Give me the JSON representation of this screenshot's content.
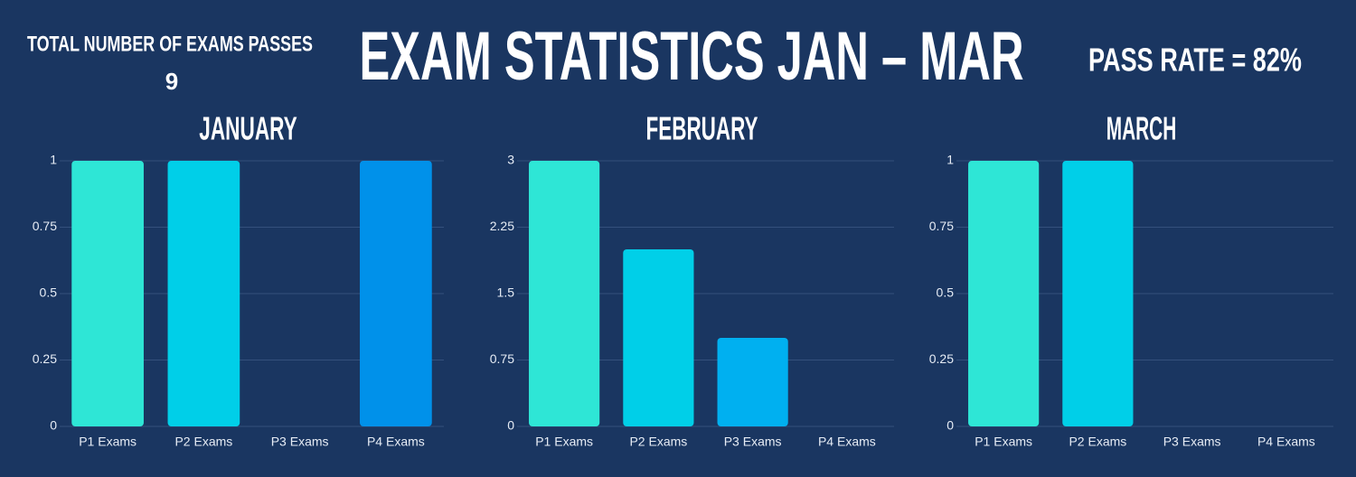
{
  "header": {
    "total_label": "TOTAL NUMBER OF EXAMS PASSES",
    "total_value": 9,
    "title": "EXAM STATISTICS JAN – MAR",
    "pass_rate": "PASS RATE = 82%"
  },
  "chart_data": [
    {
      "type": "bar",
      "title": "JANUARY",
      "categories": [
        "P1 Exams",
        "P2 Exams",
        "P3 Exams",
        "P4 Exams"
      ],
      "values": [
        1,
        1,
        0,
        1
      ],
      "colors": [
        "#2ee6d6",
        "#00cfe8",
        "#00b0f0",
        "#0091ea"
      ],
      "ylim": [
        0,
        1
      ],
      "yticks": [
        0,
        0.25,
        0.5,
        0.75,
        1
      ],
      "grid": true
    },
    {
      "type": "bar",
      "title": "FEBRUARY",
      "categories": [
        "P1 Exams",
        "P2 Exams",
        "P3 Exams",
        "P4 Exams"
      ],
      "values": [
        3,
        2,
        1,
        0
      ],
      "colors": [
        "#2ee6d6",
        "#00cfe8",
        "#00b0f0",
        "#0091ea"
      ],
      "ylim": [
        0,
        3
      ],
      "yticks": [
        0,
        0.75,
        1.5,
        2.25,
        3
      ],
      "grid": true
    },
    {
      "type": "bar",
      "title": "MARCH",
      "categories": [
        "P1 Exams",
        "P2 Exams",
        "P3 Exams",
        "P4 Exams"
      ],
      "values": [
        1,
        1,
        0,
        0
      ],
      "colors": [
        "#2ee6d6",
        "#00cfe8",
        "#00b0f0",
        "#0091ea"
      ],
      "ylim": [
        0,
        1
      ],
      "yticks": [
        0,
        0.25,
        0.5,
        0.75,
        1
      ],
      "grid": true
    }
  ]
}
